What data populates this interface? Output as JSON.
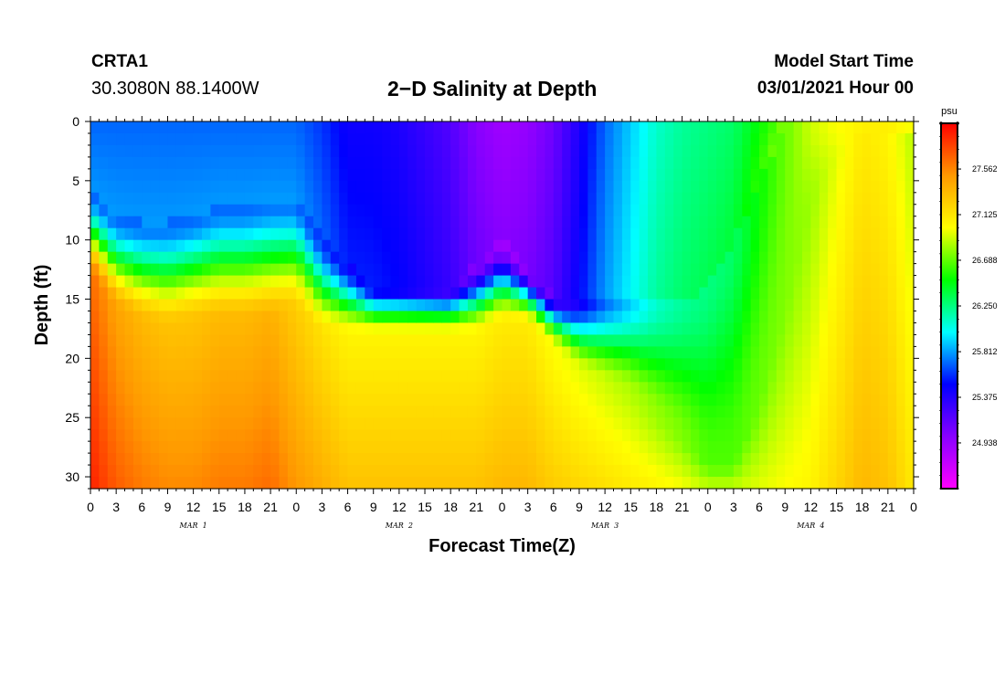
{
  "header": {
    "station_name": "CRTA1",
    "station_coords": "30.3080N 88.1400W",
    "title": "2−D Salinity at Depth",
    "model_start_label": "Model Start Time",
    "model_start_value": "03/01/2021 Hour 00"
  },
  "chart_data": {
    "type": "heatmap",
    "title": "2−D Salinity at Depth",
    "xlabel": "Forecast Time(Z)",
    "ylabel": "Depth (ft)",
    "x_range_hours": [
      0,
      96
    ],
    "y_range_ft": [
      0,
      31
    ],
    "y_inverted": true,
    "x_tick_labels": [
      "0",
      "3",
      "6",
      "9",
      "12",
      "15",
      "18",
      "21",
      "0",
      "3",
      "6",
      "9",
      "12",
      "15",
      "18",
      "21",
      "0",
      "3",
      "6",
      "9",
      "12",
      "15",
      "18",
      "21",
      "0",
      "3",
      "6",
      "9",
      "12",
      "15",
      "18",
      "21",
      "0"
    ],
    "date_labels": [
      {
        "label": "MAR  1",
        "hour": 12
      },
      {
        "label": "MAR  2",
        "hour": 36
      },
      {
        "label": "MAR  3",
        "hour": 60
      },
      {
        "label": "MAR  4",
        "hour": 84
      }
    ],
    "y_ticks": [
      0,
      5,
      10,
      15,
      20,
      25,
      30
    ],
    "colorbar": {
      "unit": "psu",
      "min": 24.5,
      "max": 28.0,
      "tick_values": [
        27.562,
        27.125,
        26.688,
        26.25,
        25.812,
        25.375,
        24.938
      ],
      "tick_labels": [
        "27.562",
        "27.125",
        "26.688",
        "26.250",
        "25.812",
        "25.375",
        "24.938"
      ],
      "colors": [
        "#ff00ff",
        "#8800ff",
        "#0000ff",
        "#00ffff",
        "#00ff00",
        "#ffff00",
        "#ff9900",
        "#ff0000"
      ]
    },
    "fresh_layer_bottom_ft": {
      "hours": [
        0,
        3,
        6,
        9,
        12,
        15,
        18,
        21,
        24,
        27,
        30,
        33,
        36,
        39,
        42,
        45,
        48,
        51,
        54,
        57,
        60,
        63,
        66,
        69,
        72,
        75,
        78,
        81,
        84,
        87,
        90,
        93,
        96
      ],
      "depth": [
        6,
        8,
        8.5,
        8.5,
        8,
        7,
        7,
        6.5,
        6.5,
        10,
        12,
        14,
        14,
        14,
        14,
        12,
        10,
        12.5,
        14.5,
        15,
        15,
        15,
        15,
        15,
        14,
        10,
        5,
        0,
        0,
        0,
        0,
        0,
        0
      ]
    },
    "halocline_bottom_ft": {
      "hours": [
        0,
        3,
        6,
        9,
        12,
        15,
        18,
        21,
        24,
        27,
        30,
        33,
        36,
        39,
        42,
        45,
        48,
        51,
        54,
        57,
        60,
        63,
        66,
        69,
        72,
        75,
        78,
        81,
        84,
        87,
        90,
        93,
        96
      ],
      "depth": [
        13,
        16,
        17,
        17.5,
        17,
        17,
        17,
        17,
        16,
        18,
        18,
        18,
        18,
        18,
        18,
        18,
        17,
        17,
        19,
        21,
        22,
        23,
        25,
        27,
        29,
        29,
        24,
        16,
        7,
        3,
        1,
        1,
        1
      ]
    },
    "bottom_salinity_psu": {
      "hours": [
        0,
        3,
        6,
        9,
        12,
        15,
        18,
        21,
        24,
        27,
        30,
        33,
        36,
        39,
        42,
        45,
        48,
        51,
        54,
        57,
        60,
        63,
        66,
        69,
        72,
        75,
        78,
        81,
        84,
        87,
        90,
        93,
        96
      ],
      "values": [
        27.9,
        27.7,
        27.6,
        27.55,
        27.55,
        27.6,
        27.6,
        27.65,
        27.5,
        27.4,
        27.3,
        27.3,
        27.3,
        27.3,
        27.3,
        27.3,
        27.35,
        27.35,
        27.25,
        27.2,
        27.15,
        27.1,
        27.05,
        27.0,
        26.9,
        26.9,
        26.95,
        27.0,
        27.05,
        27.2,
        27.35,
        27.3,
        27.1
      ]
    },
    "surface_salinity_psu": {
      "hours": [
        0,
        3,
        6,
        9,
        12,
        15,
        18,
        21,
        24,
        27,
        30,
        33,
        36,
        39,
        42,
        45,
        48,
        51,
        54,
        57,
        60,
        63,
        66,
        69,
        72,
        75,
        78,
        81,
        84,
        87,
        90,
        93,
        96
      ],
      "values": [
        25.7,
        25.7,
        25.7,
        25.7,
        25.7,
        25.7,
        25.7,
        25.7,
        25.7,
        25.6,
        25.45,
        25.45,
        25.4,
        25.3,
        25.2,
        25.0,
        24.9,
        24.95,
        25.1,
        25.4,
        25.7,
        25.9,
        26.1,
        26.2,
        26.25,
        26.3,
        26.5,
        26.7,
        26.9,
        27.0,
        27.05,
        27.1,
        27.1
      ]
    }
  }
}
